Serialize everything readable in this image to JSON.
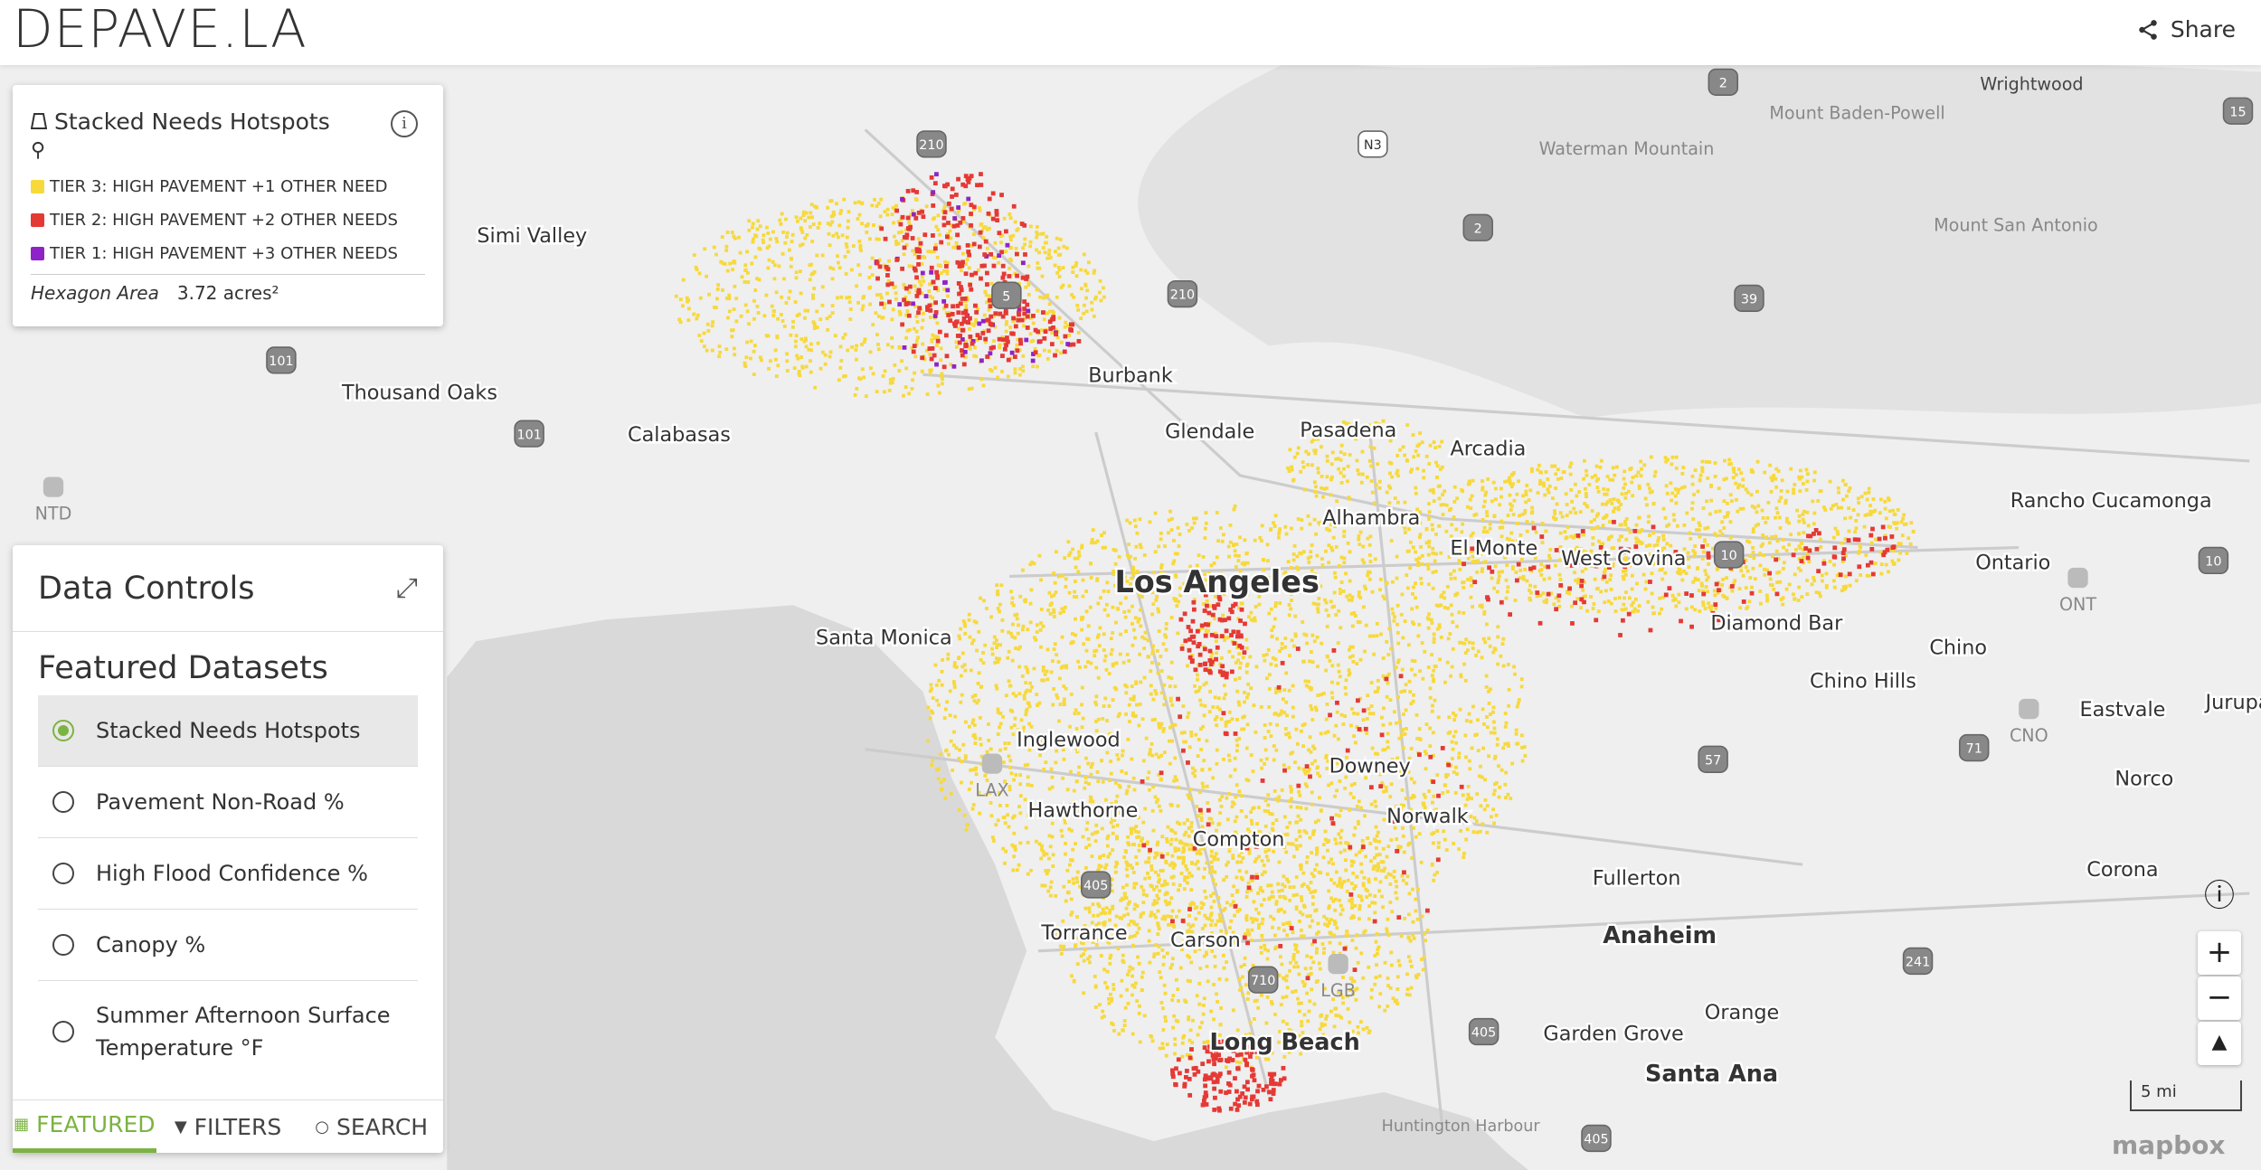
{
  "header": {
    "title": "DEPAVE.LA",
    "share": "Share"
  },
  "legend": {
    "title": "Stacked Needs Hotspots",
    "items": [
      {
        "label": "TIER 3: HIGH PAVEMENT +1 OTHER NEED",
        "color": "#f7d93c"
      },
      {
        "label": "TIER 2: HIGH PAVEMENT +2 OTHER NEEDS",
        "color": "#e53935"
      },
      {
        "label": "TIER 1: HIGH PAVEMENT +3 OTHER NEEDS",
        "color": "#8e24c8"
      }
    ],
    "area_label": "Hexagon Area",
    "area_value": "3.72 acres²"
  },
  "controls": {
    "title": "Data Controls",
    "section": "Featured Datasets",
    "options": [
      "Stacked Needs Hotspots",
      "Pavement Non-Road %",
      "High Flood Confidence %",
      "Canopy %",
      "Summer Afternoon Surface Temperature °F"
    ],
    "tabs": [
      "FEATURED",
      "FILTERS",
      "SEARCH"
    ]
  },
  "map": {
    "places": [
      "Simi Valley",
      "Thousand Oaks",
      "Calabasas",
      "Burbank",
      "Glendale",
      "Pasadena",
      "Arcadia",
      "Alhambra",
      "El Monte",
      "West Covina",
      "Los Angeles",
      "Santa Monica",
      "Diamond Bar",
      "Chino",
      "Chino Hills",
      "Inglewood",
      "Downey",
      "Hawthorne",
      "Norwalk",
      "Compton",
      "Fullerton",
      "Anaheim",
      "Torrance",
      "Carson",
      "Long Beach",
      "Garden Grove",
      "Orange",
      "Santa Ana",
      "Ontario",
      "Rancho Cucamonga",
      "Eastvale",
      "Norco",
      "Corona",
      "Jurupa"
    ],
    "features": [
      "Wrightwood",
      "Mount Baden-Powell",
      "Waterman Mountain",
      "Mount San Antonio",
      "Huntington Harbour"
    ],
    "airports": [
      "NTD",
      "LAX",
      "LGB",
      "ONT",
      "CNO"
    ],
    "shields": [
      "210",
      "N3",
      "2",
      "5",
      "210",
      "101",
      "101",
      "2",
      "39",
      "57",
      "10",
      "10",
      "71",
      "241",
      "405",
      "405",
      "710",
      "405",
      "15"
    ],
    "scale": "5 mi",
    "attribution": "mapbox"
  }
}
